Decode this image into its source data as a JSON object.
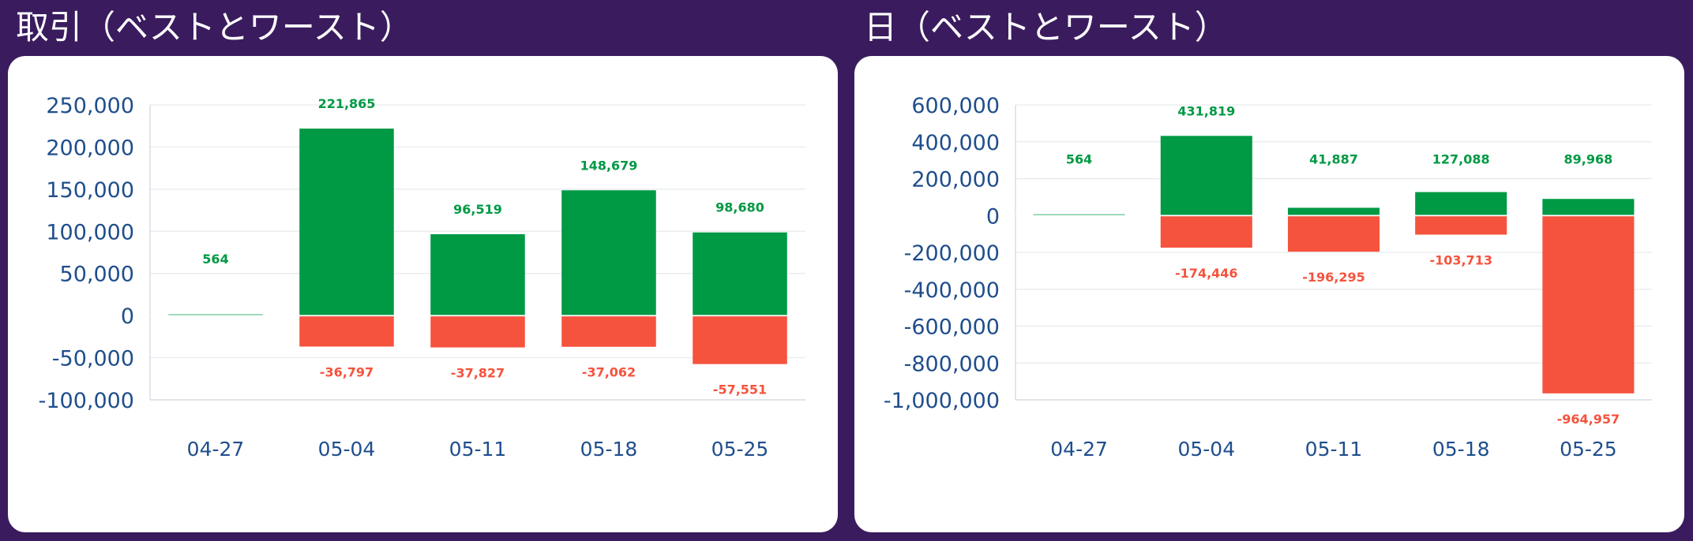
{
  "chart_data": [
    {
      "type": "bar",
      "title": "取引（ベストとワースト）",
      "categories": [
        "04-27",
        "05-04",
        "05-11",
        "05-18",
        "05-25"
      ],
      "series": [
        {
          "values": [
            564,
            221865,
            96519,
            148679,
            98680
          ],
          "color": "#009944"
        },
        {
          "values": [
            0,
            -36797,
            -37827,
            -37062,
            -57551
          ],
          "color": "#f5533d"
        }
      ],
      "pos_labels": [
        "564",
        "221,865",
        "96,519",
        "148,679",
        "98,680"
      ],
      "neg_labels": [
        "",
        "-36,797",
        "-37,827",
        "-37,062",
        "-57,551"
      ],
      "yticks": [
        250000,
        200000,
        150000,
        100000,
        50000,
        0,
        -50000,
        -100000
      ],
      "ytick_labels": [
        "250,000",
        "200,000",
        "150,000",
        "100,000",
        "50,000",
        "0",
        "-50,000",
        "-100,000"
      ],
      "ylim": [
        -100000,
        250000
      ],
      "grid": true
    },
    {
      "type": "bar",
      "title": "日（ベストとワースト）",
      "categories": [
        "04-27",
        "05-04",
        "05-11",
        "05-18",
        "05-25"
      ],
      "series": [
        {
          "values": [
            564,
            431819,
            41887,
            127088,
            89968
          ],
          "color": "#009944"
        },
        {
          "values": [
            0,
            -174446,
            -196295,
            -103713,
            -964957
          ],
          "color": "#f5533d"
        }
      ],
      "pos_labels": [
        "564",
        "431,819",
        "41,887",
        "127,088",
        "89,968"
      ],
      "neg_labels": [
        "",
        "-174,446",
        "-196,295",
        "-103,713",
        "-964,957"
      ],
      "yticks": [
        600000,
        400000,
        200000,
        0,
        -200000,
        -400000,
        -600000,
        -800000,
        -1000000
      ],
      "ytick_labels": [
        "600,000",
        "400,000",
        "200,000",
        "0",
        "-200,000",
        "-400,000",
        "-600,000",
        "-800,000",
        "-1,000,000"
      ],
      "ylim": [
        -1000000,
        600000
      ],
      "grid": true
    }
  ],
  "colors": {
    "background": "#3a1c5e",
    "card": "#ffffff",
    "positive": "#009944",
    "negative": "#f5533d",
    "axis_text": "#1f4e8c",
    "grid": "#e6eaee"
  }
}
